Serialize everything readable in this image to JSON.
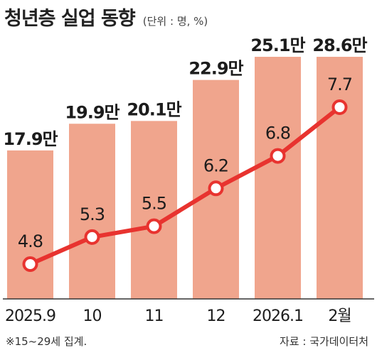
{
  "header": {
    "title": "청년층 실업 동향",
    "unit": "(단위 : 명, %)"
  },
  "chart_data": {
    "type": "bar",
    "categories": [
      "2025.9",
      "10",
      "11",
      "12",
      "2026.1",
      "2월"
    ],
    "series": [
      {
        "kind": "bar",
        "values": [
          17.9,
          19.9,
          20.1,
          22.9,
          25.1,
          28.6
        ],
        "value_labels": [
          "17.9만",
          "19.9만",
          "20.1만",
          "22.9만",
          "25.1만",
          "28.6만"
        ],
        "color": "#f0a58d"
      },
      {
        "kind": "line",
        "values": [
          4.8,
          5.3,
          5.5,
          6.2,
          6.8,
          7.7
        ],
        "value_labels": [
          "4.8",
          "5.3",
          "5.5",
          "6.2",
          "6.8",
          "7.7"
        ],
        "color": "#e8332f"
      }
    ],
    "grid": false,
    "legend": "none"
  },
  "footnote": "※15~29세 집계.",
  "source": "자료 : 국가데이터처"
}
